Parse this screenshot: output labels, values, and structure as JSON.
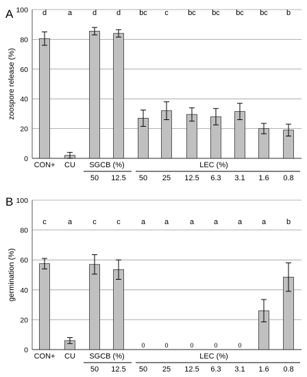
{
  "chart_data": [
    {
      "panel": "A",
      "type": "bar",
      "ylabel": "zoospore release (%)",
      "ylim": [
        0,
        100
      ],
      "yticks": [
        "0",
        "20",
        "40",
        "60",
        "80",
        "100"
      ],
      "grid": true,
      "categories": [
        "CON+",
        "CU",
        "SGCB 50",
        "SGCB 12.5",
        "LEC 50",
        "LEC 25",
        "LEC 12.5",
        "LEC 6.3",
        "LEC 3.1",
        "LEC 1.6",
        "LEC 0.8"
      ],
      "values": [
        80.5,
        2,
        85.5,
        84,
        27,
        32,
        29.5,
        28,
        31.5,
        20,
        19
      ],
      "errors": [
        4.5,
        2,
        2.5,
        2.5,
        5.5,
        6,
        4.5,
        5.5,
        5.5,
        3.5,
        4
      ],
      "letters": [
        "d",
        "a",
        "d",
        "d",
        "bc",
        "c",
        "bc",
        "bc",
        "bc",
        "bc",
        "b"
      ],
      "value_labels": [
        "",
        "",
        "",
        "",
        "",
        "",
        "",
        "",
        "",
        "",
        ""
      ],
      "x_labels": {
        "con": "CON+",
        "cu": "CU",
        "sgcb_group": "SGCB (%)",
        "lec_group": "LEC (%)",
        "sgcb_doses": [
          "50",
          "12.5"
        ],
        "lec_doses": [
          "50",
          "25",
          "12.5",
          "6.3",
          "3.1",
          "1.6",
          "0.8"
        ]
      }
    },
    {
      "panel": "B",
      "type": "bar",
      "ylabel": "germination (%)",
      "ylim": [
        0,
        100
      ],
      "yticks": [
        "0",
        "20",
        "40",
        "60",
        "80",
        "100"
      ],
      "grid": true,
      "categories": [
        "CON+",
        "CU",
        "SGCB 50",
        "SGCB 12.5",
        "LEC 50",
        "LEC 25",
        "LEC 12.5",
        "LEC 6.3",
        "LEC 3.1",
        "LEC 1.6",
        "LEC 0.8"
      ],
      "values": [
        57.5,
        6,
        57,
        53.5,
        0,
        0,
        0,
        0,
        0,
        26,
        48.5
      ],
      "errors": [
        3.5,
        2,
        6.5,
        6.5,
        0,
        0,
        0,
        0,
        0,
        7.5,
        9.5
      ],
      "letters": [
        "c",
        "a",
        "c",
        "c",
        "a",
        "a",
        "a",
        "a",
        "a",
        "a",
        "b"
      ],
      "value_labels": [
        "",
        "",
        "",
        "",
        "0",
        "0",
        "0",
        "0",
        "0",
        "",
        ""
      ],
      "x_labels": {
        "con": "CON+",
        "cu": "CU",
        "sgcb_group": "SGCB (%)",
        "lec_group": "LEC (%)",
        "sgcb_doses": [
          "50",
          "12.5"
        ],
        "lec_doses": [
          "50",
          "25",
          "12.5",
          "6.3",
          "3.1",
          "1.6",
          "0.8"
        ]
      }
    }
  ],
  "colors": {
    "bar_fill": "#c0c0c0",
    "bar_stroke": "#333333",
    "grid": "#9a9a9a",
    "axis": "#555555"
  }
}
